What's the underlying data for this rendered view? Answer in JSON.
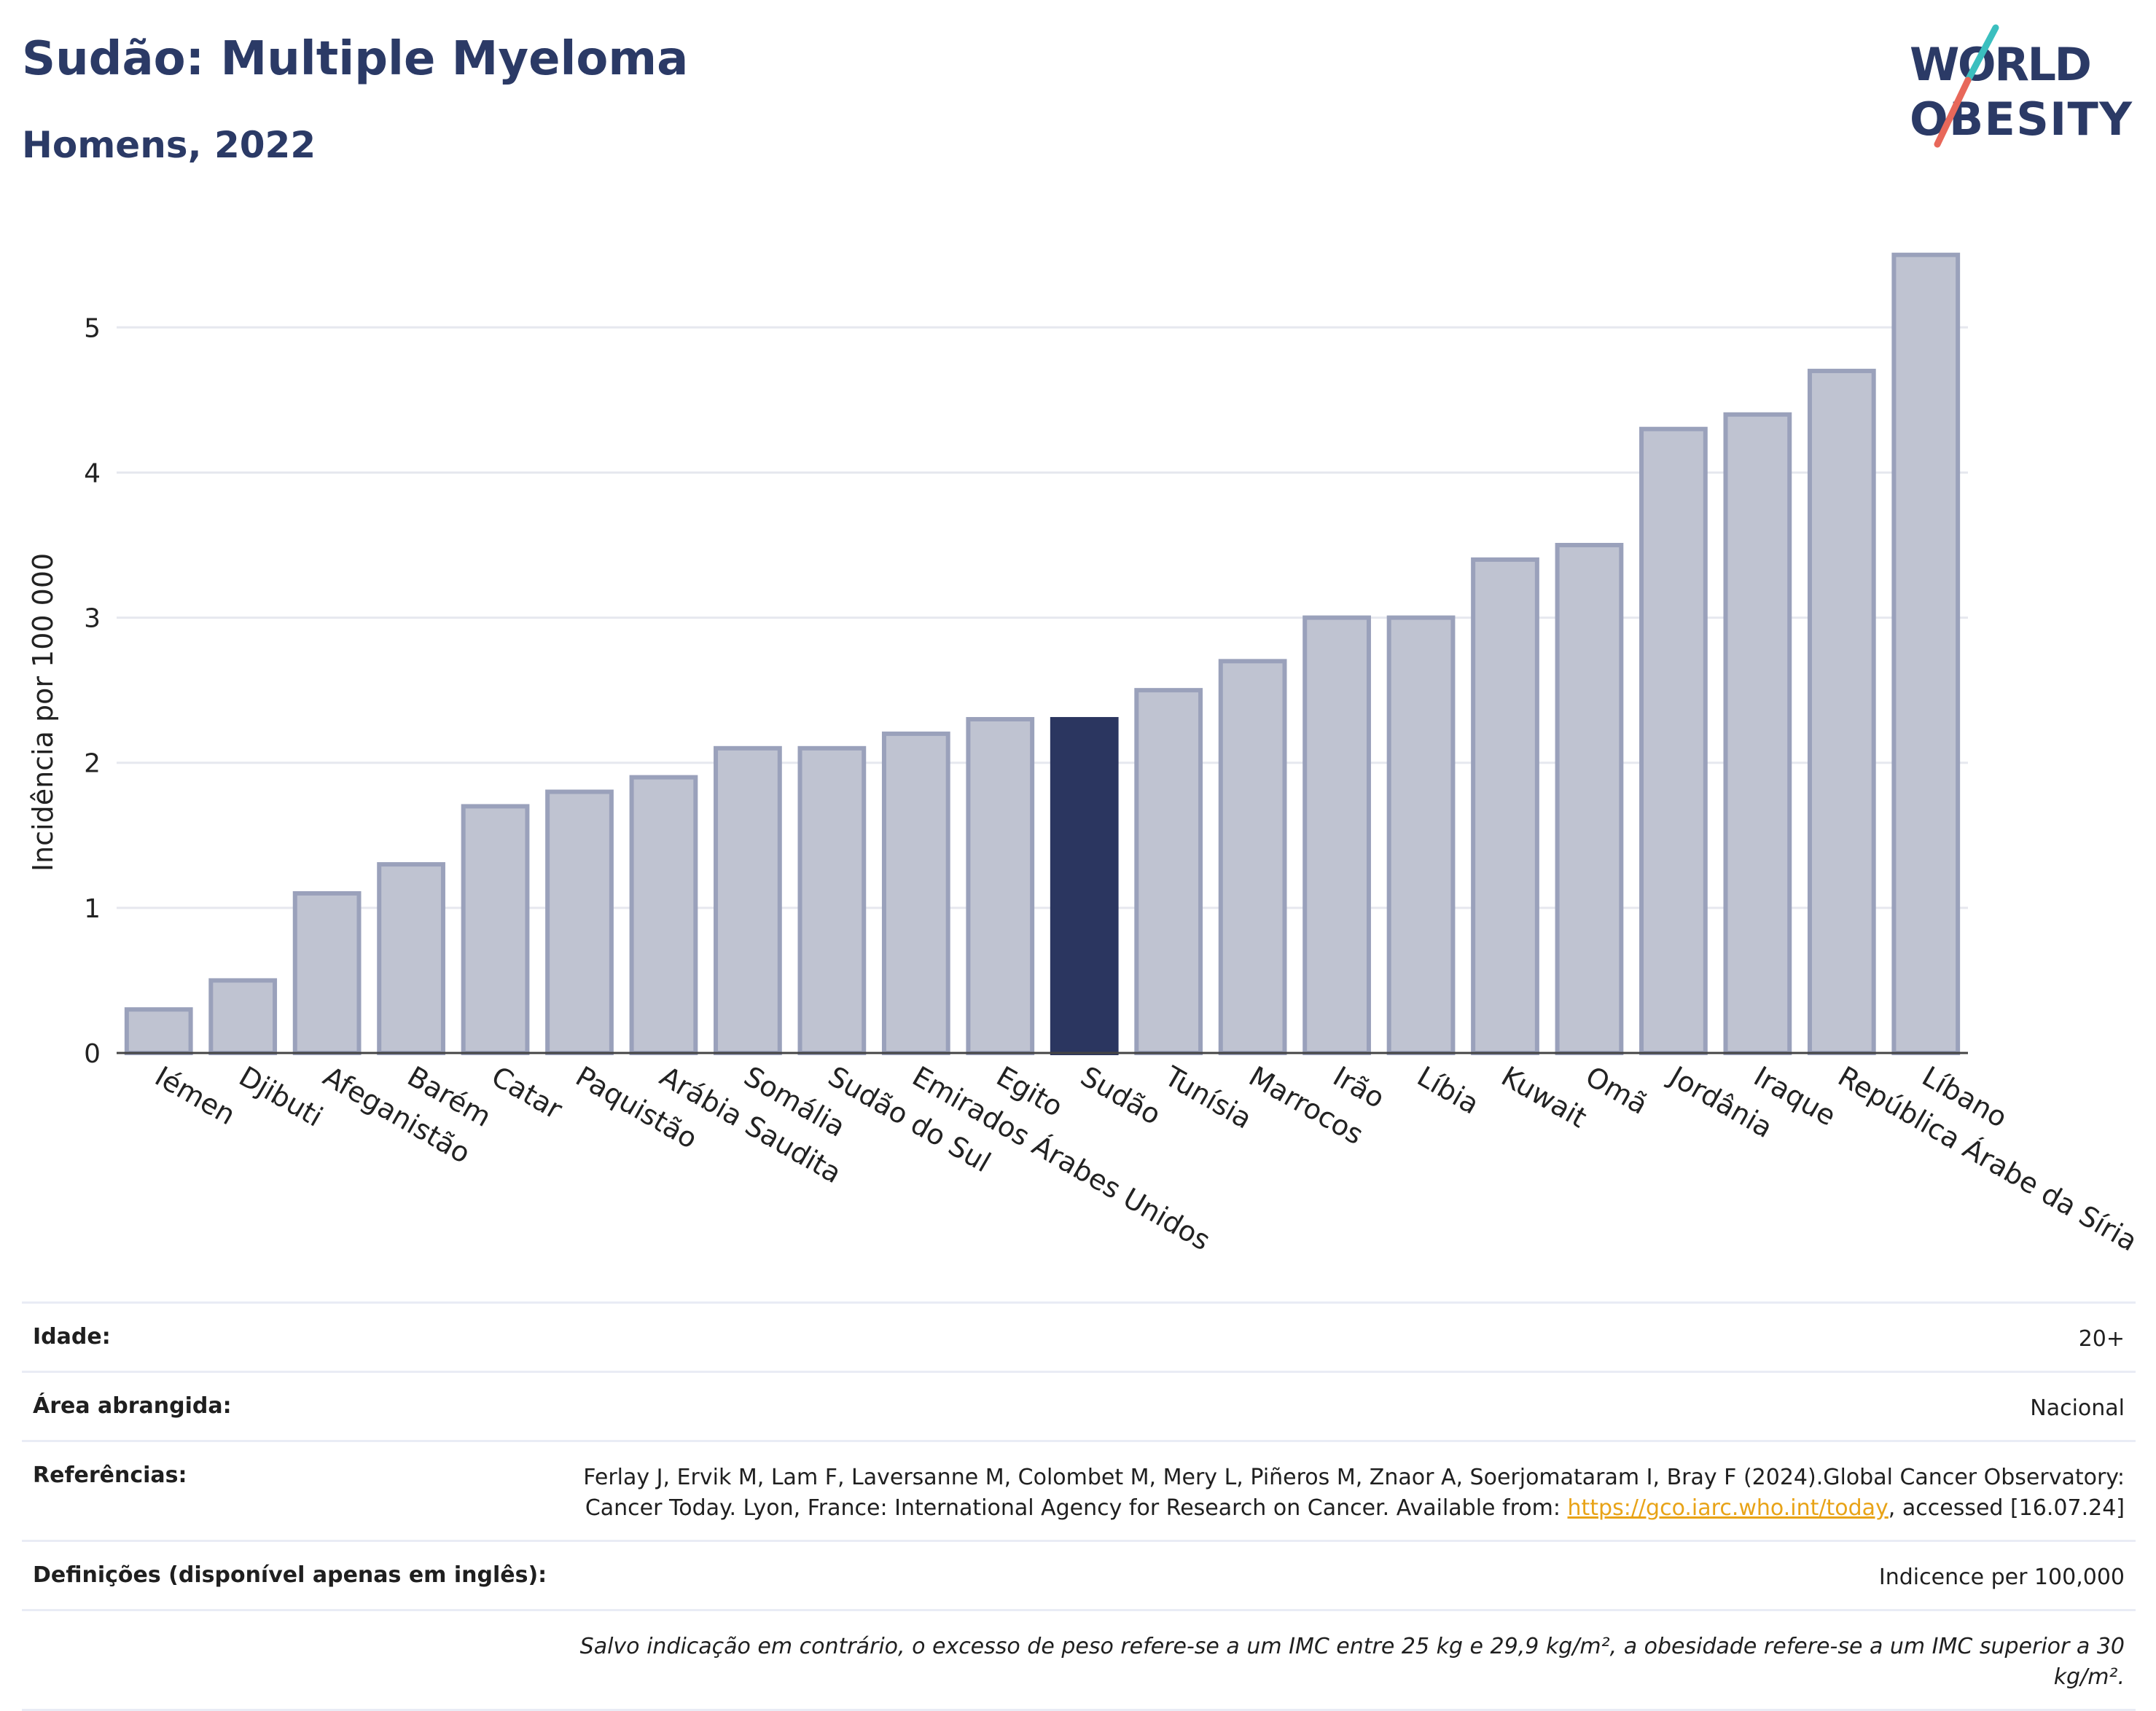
{
  "header": {
    "title": "Sudão: Multiple Myeloma",
    "subtitle": "Homens, 2022"
  },
  "logo": {
    "line1": "WORLD",
    "line2": "OBESITY"
  },
  "chart_data": {
    "type": "bar",
    "title": "Sudão: Multiple Myeloma",
    "subtitle": "Homens, 2022",
    "xlabel": "",
    "ylabel": "Incidência por 100 000",
    "ylim": [
      0,
      5.8
    ],
    "yticks": [
      0,
      1,
      2,
      3,
      4,
      5
    ],
    "grid": true,
    "highlight": "Sudão",
    "colors": {
      "bar": "#bfc3d1",
      "bar_border": "#9aa1bb",
      "highlight": "#2b3660",
      "grid": "#e6e8ef"
    },
    "categories": [
      "Iémen",
      "Djibuti",
      "Afeganistão",
      "Barém",
      "Catar",
      "Paquistão",
      "Arábia Saudita",
      "Somália",
      "Sudão do Sul",
      "Emirados Árabes Unidos",
      "Egito",
      "Sudão",
      "Tunísia",
      "Marrocos",
      "Irão",
      "Líbia",
      "Kuwait",
      "Omã",
      "Jordânia",
      "Iraque",
      "República Árabe da Síria",
      "Líbano"
    ],
    "values": [
      0.3,
      0.5,
      1.1,
      1.3,
      1.7,
      1.8,
      1.9,
      2.1,
      2.1,
      2.2,
      2.3,
      2.3,
      2.5,
      2.7,
      3.0,
      3.0,
      3.4,
      3.5,
      4.3,
      4.4,
      4.7,
      5.5
    ]
  },
  "info": {
    "age_label": "Idade:",
    "age_value": "20+",
    "area_label": "Área abrangida:",
    "area_value": "Nacional",
    "refs_label": "Referências:",
    "refs_text_1": "Ferlay J, Ervik M, Lam F, Laversanne M, Colombet M, Mery L, Piñeros M, Znaor A, Soerjomataram I, Bray F (2024).Global Cancer Observatory: Cancer Today. Lyon, France: International Agency for Research on Cancer. Available from: ",
    "refs_link": "https://gco.iarc.who.int/today",
    "refs_text_2": ", accessed [16.07.24]",
    "defs_label": "Definições (disponível apenas em inglês):",
    "defs_value": "Indicence per 100,000",
    "note": "Salvo indicação em contrário, o excesso de peso refere-se a um IMC entre 25 kg e 29,9 kg/m², a obesidade refere-se a um IMC superior a 30 kg/m²."
  }
}
